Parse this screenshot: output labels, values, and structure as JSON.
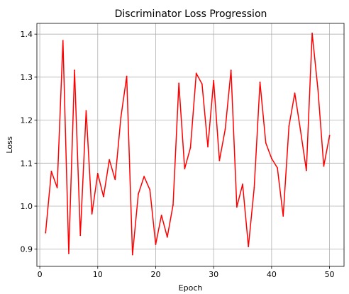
{
  "chart_data": {
    "type": "line",
    "title": "Discriminator Loss Progression",
    "xlabel": "Epoch",
    "ylabel": "Loss",
    "xlim": [
      -0.5,
      52.5
    ],
    "ylim": [
      0.86,
      1.425
    ],
    "xticks": [
      0,
      10,
      20,
      30,
      40,
      50
    ],
    "yticks": [
      0.9,
      1.0,
      1.1,
      1.2,
      1.3,
      1.4
    ],
    "ytick_labels": [
      "0.9",
      "1.0",
      "1.1",
      "1.2",
      "1.3",
      "1.4"
    ],
    "grid": true,
    "series": [
      {
        "color": "#ff0000",
        "x": [
          1,
          2,
          3,
          4,
          5,
          6,
          7,
          8,
          9,
          10,
          11,
          12,
          13,
          14,
          15,
          16,
          17,
          18,
          19,
          20,
          21,
          22,
          23,
          24,
          25,
          26,
          27,
          28,
          29,
          30,
          31,
          32,
          33,
          34,
          35,
          36,
          37,
          38,
          39,
          40,
          41,
          42,
          43,
          44,
          45,
          46,
          47,
          48,
          49,
          50
        ],
        "values": [
          0.938,
          1.081,
          1.043,
          1.385,
          0.89,
          1.316,
          0.932,
          1.222,
          0.982,
          1.076,
          1.022,
          1.108,
          1.062,
          1.207,
          1.302,
          0.887,
          1.028,
          1.069,
          1.038,
          0.911,
          0.979,
          0.928,
          1.003,
          1.286,
          1.087,
          1.136,
          1.309,
          1.284,
          1.138,
          1.292,
          1.106,
          1.179,
          1.316,
          0.998,
          1.051,
          0.906,
          1.043,
          1.288,
          1.147,
          1.111,
          1.089,
          0.977,
          1.186,
          1.263,
          1.175,
          1.083,
          1.402,
          1.271,
          1.093,
          1.164
        ]
      }
    ]
  }
}
